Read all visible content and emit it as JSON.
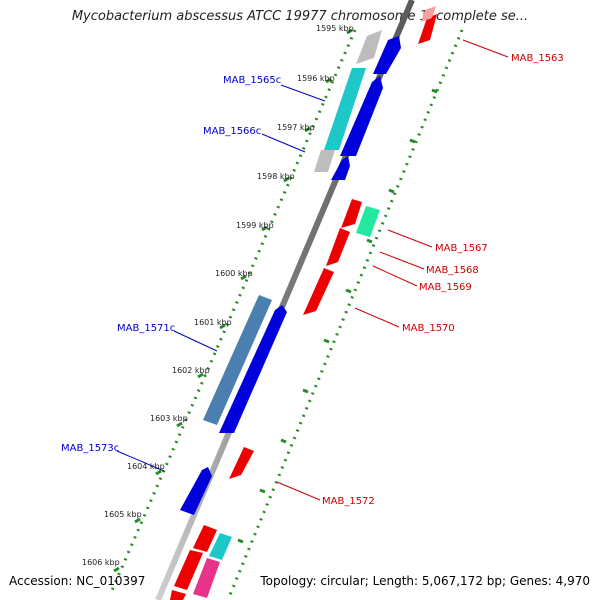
{
  "title": "Mycobacterium abscessus ATCC 19977 chromosome 1, complete se...",
  "footer": {
    "accession": "Accession: NC_010397",
    "summary": "Topology: circular; Length: 5,067,172 bp; Genes: 4,970"
  },
  "ticks": [
    "1595 kbp",
    "1596 kbp",
    "1597 kbp",
    "1598 kbp",
    "1599 kbp",
    "1600 kbp",
    "1601 kbp",
    "1602 kbp",
    "1603 kbp",
    "1604 kbp",
    "1605 kbp",
    "1606 kbp"
  ],
  "labels": {
    "left": [
      "MAB_1565c",
      "MAB_1566c",
      "MAB_1571c",
      "MAB_1573c"
    ],
    "right": [
      "MAB_1563",
      "MAB_1567",
      "MAB_1568",
      "MAB_1569",
      "MAB_1570",
      "MAB_1572"
    ]
  },
  "colors": {
    "reverse_label": "#0000cc",
    "forward_label": "#cc0000",
    "dots": "#2a8a2a",
    "backbone": "#888888"
  }
}
